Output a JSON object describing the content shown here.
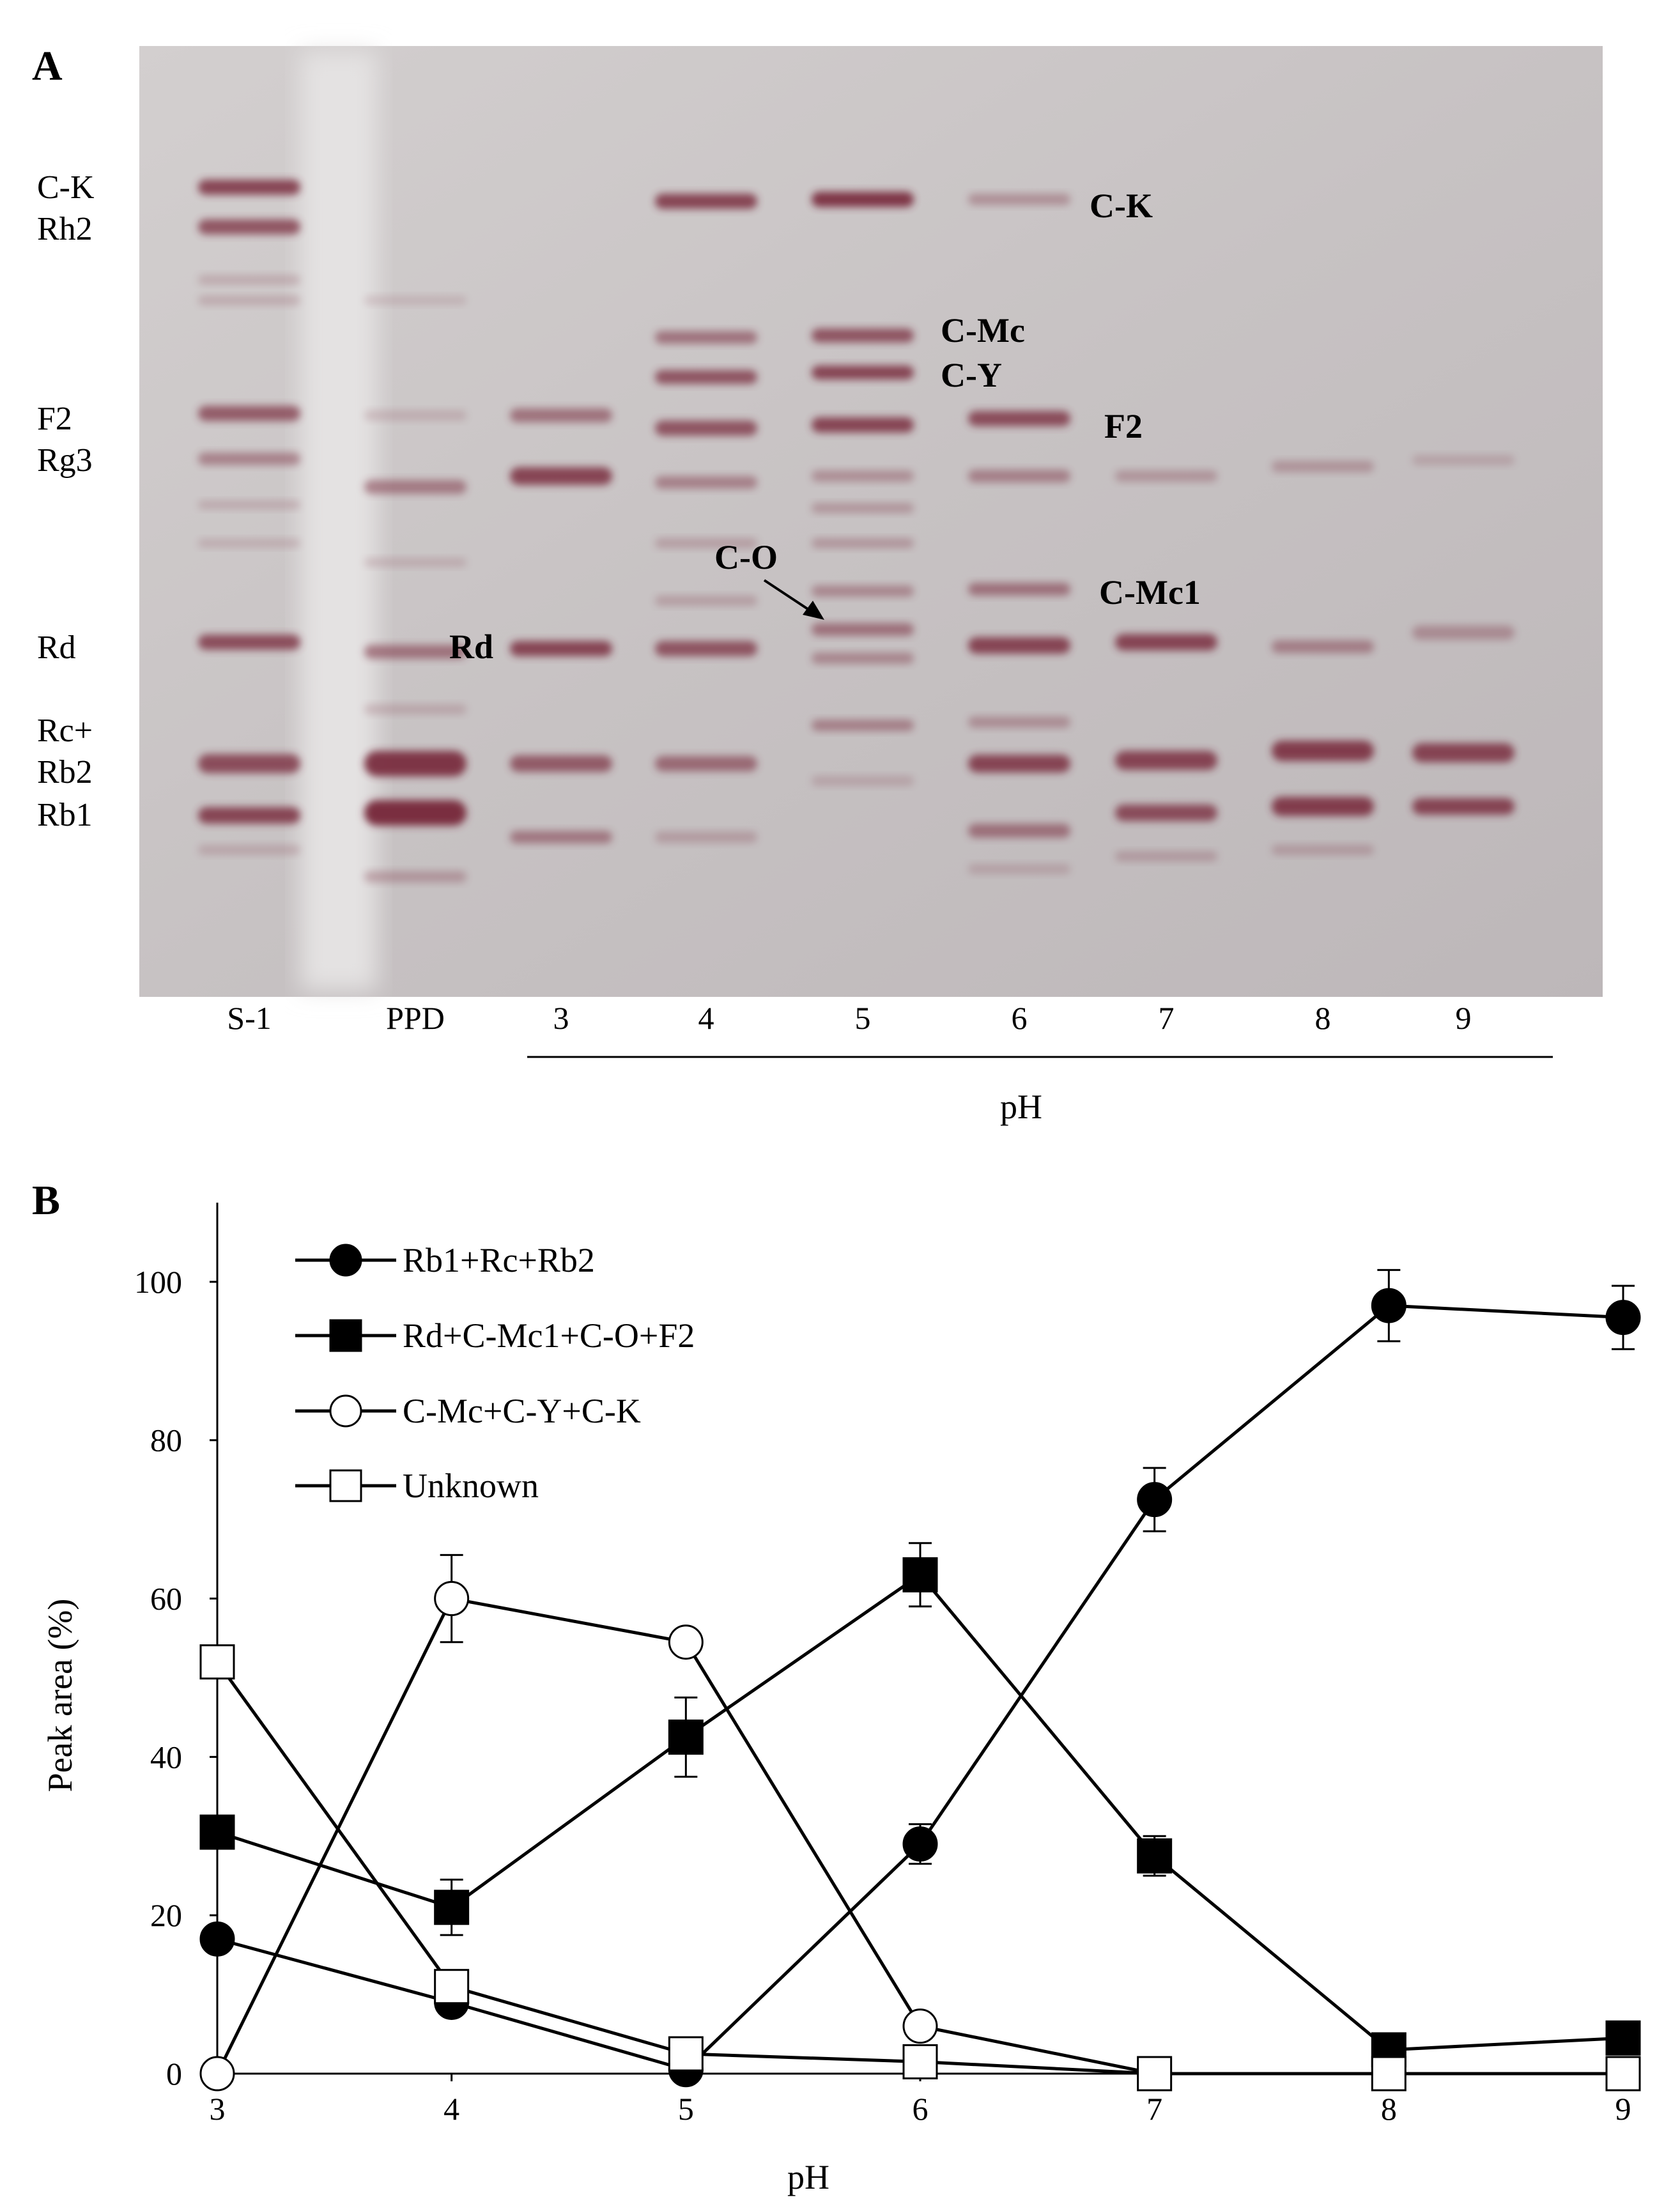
{
  "panel_a": {
    "letter": "A",
    "left_labels": [
      "C-K",
      "Rh2",
      "F2",
      "Rg3",
      "Rd",
      "Rc+",
      "Rb2",
      "Rb1"
    ],
    "band_labels": {
      "ck": "C-K",
      "cmc": "C-Mc",
      "cy": "C-Y",
      "f2": "F2",
      "co": "C-O",
      "cmc1": "C-Mc1",
      "rd": "Rd"
    },
    "lanes": [
      "S-1",
      "PPD",
      "3",
      "4",
      "5",
      "6",
      "7",
      "8",
      "9"
    ],
    "xlabel": "pH",
    "colors": {
      "plate": "#c9c4c5",
      "band": "#7a2f40"
    }
  },
  "panel_b": {
    "letter": "B"
  },
  "chart_data": {
    "type": "line",
    "title": "",
    "xlabel": "pH",
    "ylabel": "Peak area (%)",
    "x": [
      3,
      4,
      5,
      6,
      7,
      8,
      9
    ],
    "xlim": [
      3,
      9
    ],
    "ylim": [
      0,
      110
    ],
    "y_ticks": [
      0,
      20,
      40,
      60,
      80,
      100
    ],
    "legend_position": "top-left",
    "grid": false,
    "series": [
      {
        "name": "Rb1+Rc+Rb2",
        "marker": "circle-filled",
        "values": [
          17,
          9,
          0.5,
          29,
          72.5,
          97,
          95.5
        ],
        "errors": [
          0,
          0,
          0,
          2.5,
          4,
          4.5,
          4
        ]
      },
      {
        "name": "Rd+C-Mc1+C-O+F2",
        "marker": "square-filled",
        "values": [
          30.5,
          21,
          42.5,
          63,
          27.5,
          3,
          4.5
        ],
        "errors": [
          0,
          3.5,
          5,
          4,
          2.5,
          0,
          0
        ]
      },
      {
        "name": "C-Mc+C-Y+C-K",
        "marker": "circle-open",
        "values": [
          0,
          60,
          54.5,
          6,
          0,
          0,
          0
        ],
        "errors": [
          0,
          5.5,
          0,
          0,
          0,
          0,
          0
        ]
      },
      {
        "name": "Unknown",
        "marker": "square-open",
        "values": [
          52,
          11,
          2.5,
          1.5,
          0,
          0,
          0
        ],
        "errors": [
          0,
          0,
          0,
          0,
          0,
          0,
          0
        ]
      }
    ]
  }
}
